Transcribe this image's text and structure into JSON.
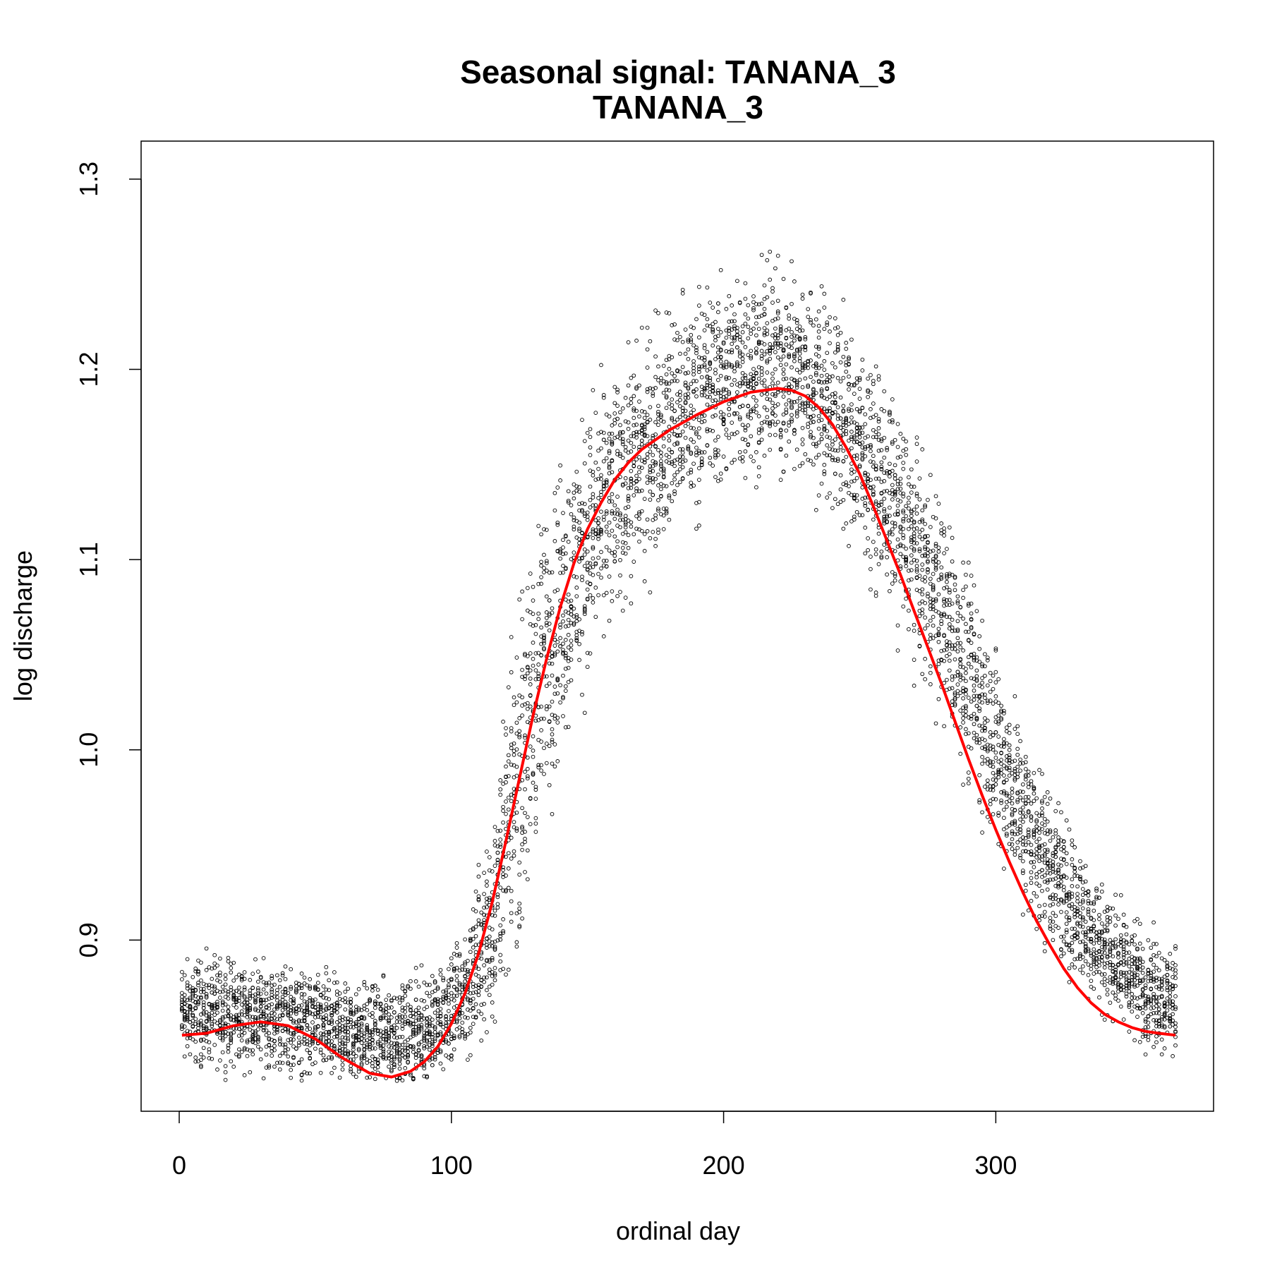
{
  "chart_data": {
    "type": "scatter",
    "title": "Seasonal signal: TANANA_3",
    "subtitle": "TANANA_3",
    "xlabel": "ordinal day",
    "ylabel": "log discharge",
    "xlim": [
      -14,
      380
    ],
    "ylim": [
      0.81,
      1.32
    ],
    "xticks": [
      0,
      100,
      200,
      300
    ],
    "yticks": [
      0.9,
      1.0,
      1.1,
      1.2,
      1.3
    ],
    "xtick_labels": [
      "0",
      "100",
      "200",
      "300"
    ],
    "ytick_labels": [
      "0.9",
      "1.0",
      "1.1",
      "1.2",
      "1.3"
    ],
    "grid": false,
    "legend": "none",
    "series": [
      {
        "kind": "points",
        "marker": "open-circle",
        "color": "#000000",
        "envelope_x": [
          1,
          20,
          40,
          60,
          80,
          95,
          105,
          115,
          125,
          135,
          150,
          165,
          180,
          195,
          210,
          222,
          235,
          250,
          265,
          280,
          295,
          310,
          325,
          340,
          355,
          366
        ],
        "envelope_y": [
          0.862,
          0.862,
          0.858,
          0.852,
          0.85,
          0.855,
          0.872,
          0.91,
          0.99,
          1.055,
          1.11,
          1.145,
          1.17,
          1.19,
          1.2,
          1.2,
          1.19,
          1.16,
          1.12,
          1.075,
          1.02,
          0.965,
          0.925,
          0.895,
          0.875,
          0.868
        ],
        "envelope_spread": [
          0.02,
          0.02,
          0.02,
          0.02,
          0.02,
          0.02,
          0.025,
          0.04,
          0.06,
          0.06,
          0.05,
          0.045,
          0.045,
          0.04,
          0.04,
          0.04,
          0.04,
          0.04,
          0.04,
          0.04,
          0.04,
          0.035,
          0.03,
          0.025,
          0.022,
          0.02
        ],
        "points_per_day": 16
      },
      {
        "kind": "line",
        "color": "#ff0000",
        "x": [
          1,
          10,
          20,
          30,
          40,
          50,
          60,
          70,
          78,
          85,
          90,
          95,
          100,
          105,
          110,
          115,
          120,
          125,
          130,
          135,
          140,
          145,
          150,
          155,
          160,
          165,
          170,
          180,
          190,
          200,
          210,
          220,
          225,
          230,
          235,
          240,
          245,
          250,
          255,
          260,
          265,
          270,
          275,
          280,
          285,
          290,
          295,
          300,
          305,
          310,
          315,
          320,
          325,
          330,
          335,
          340,
          345,
          350,
          355,
          360,
          366
        ],
        "y": [
          0.85,
          0.851,
          0.855,
          0.857,
          0.855,
          0.848,
          0.838,
          0.83,
          0.828,
          0.831,
          0.836,
          0.844,
          0.856,
          0.872,
          0.893,
          0.92,
          0.952,
          0.985,
          1.018,
          1.048,
          1.075,
          1.098,
          1.116,
          1.13,
          1.142,
          1.151,
          1.158,
          1.168,
          1.176,
          1.183,
          1.188,
          1.19,
          1.189,
          1.186,
          1.18,
          1.171,
          1.159,
          1.145,
          1.128,
          1.11,
          1.092,
          1.073,
          1.054,
          1.035,
          1.015,
          0.995,
          0.976,
          0.958,
          0.941,
          0.925,
          0.91,
          0.897,
          0.885,
          0.875,
          0.867,
          0.861,
          0.857,
          0.854,
          0.852,
          0.851,
          0.85
        ]
      }
    ]
  }
}
